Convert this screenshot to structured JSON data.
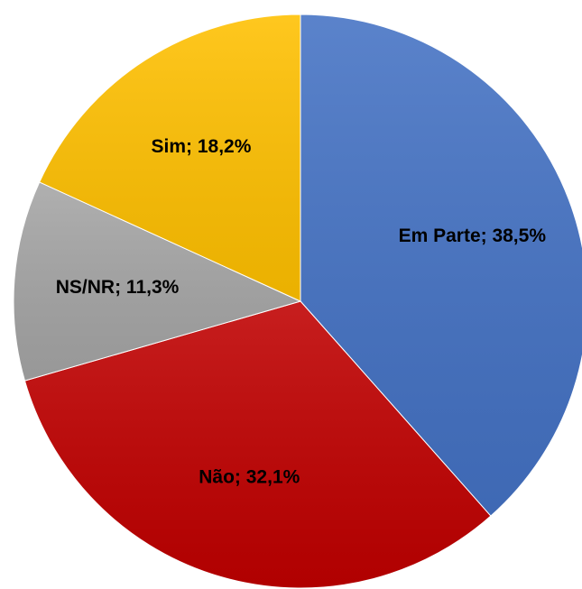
{
  "chart_data": {
    "type": "pie",
    "categories": [
      "Em Parte",
      "Não",
      "NS/NR",
      "Sim"
    ],
    "values": [
      38.5,
      32.1,
      11.3,
      18.2
    ],
    "value_labels": [
      "38,5%",
      "32,1%",
      "11,3%",
      "18,2%"
    ],
    "label_separator": "; ",
    "colors": [
      "#4472c4",
      "#c00000",
      "#a5a5a5",
      "#ffc000"
    ]
  }
}
